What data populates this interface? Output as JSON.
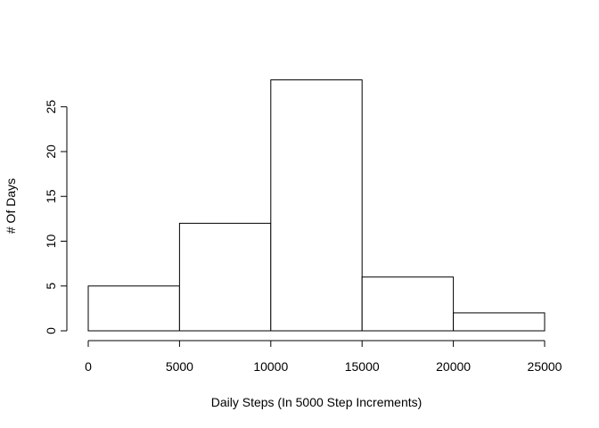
{
  "chart_data": {
    "type": "bar",
    "subtype": "histogram",
    "xlabel": "Daily Steps (In 5000 Step Increments)",
    "ylabel": "# Of Days",
    "bins": [
      {
        "from": 0,
        "to": 5000,
        "count": 5
      },
      {
        "from": 5000,
        "to": 10000,
        "count": 12
      },
      {
        "from": 10000,
        "to": 15000,
        "count": 28
      },
      {
        "from": 15000,
        "to": 20000,
        "count": 6
      },
      {
        "from": 20000,
        "to": 25000,
        "count": 2
      }
    ],
    "x_ticks": [
      0,
      5000,
      10000,
      15000,
      20000,
      25000
    ],
    "y_ticks": [
      0,
      5,
      10,
      15,
      20,
      25
    ],
    "xlim": [
      0,
      25000
    ],
    "ylim": [
      0,
      28
    ],
    "grid": false,
    "legend": "none",
    "bar_fill": "#ffffff",
    "bar_stroke": "#000000"
  }
}
